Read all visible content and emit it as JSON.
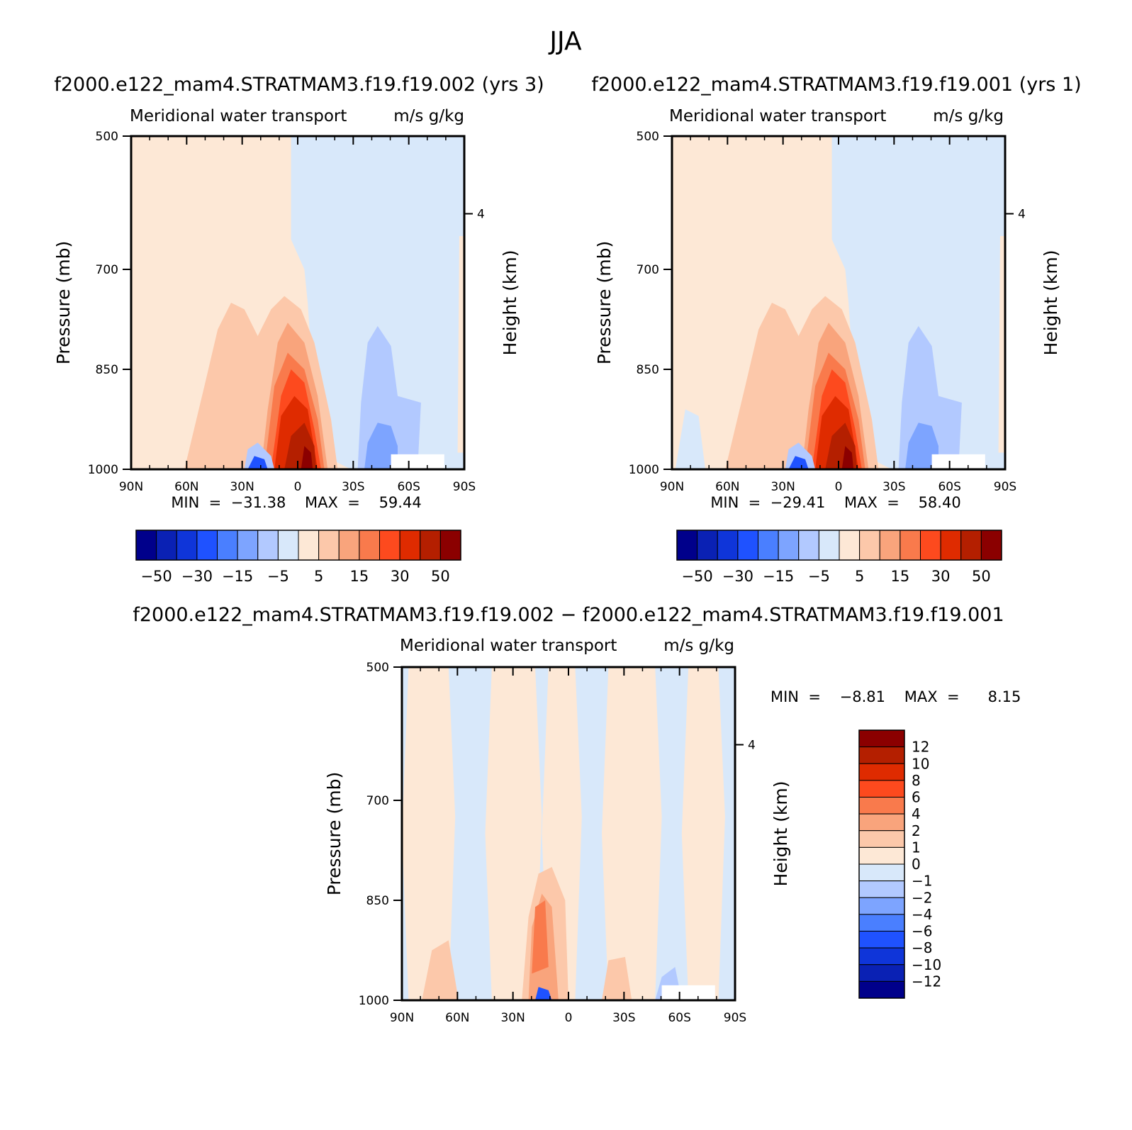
{
  "figure": {
    "title": "JJA",
    "panels": [
      {
        "case_title": "f2000.e122_mam4.STRATMAM3.f19.f19.002  (yrs  3)",
        "left_title": "Meridional  water  transport",
        "right_title": "m/s  g/kg",
        "min_max_text": "MIN  =  −31.38    MAX  =    59.44",
        "colorbar_labels": [
          "−50",
          "−30",
          "−15",
          "−5",
          "5",
          "15",
          "30",
          "50"
        ]
      },
      {
        "case_title": "f2000.e122_mam4.STRATMAM3.f19.f19.001  (yrs  1)",
        "left_title": "Meridional  water  transport",
        "right_title": "m/s  g/kg",
        "min_max_text": "MIN  =  −29.41    MAX  =    58.40",
        "colorbar_labels": [
          "−50",
          "−30",
          "−15",
          "−5",
          "5",
          "15",
          "30",
          "50"
        ]
      },
      {
        "case_title": "f2000.e122_mam4.STRATMAM3.f19.f19.002  −  f2000.e122_mam4.STRATMAM3.f19.f19.001",
        "left_title": "Meridional  water  transport",
        "right_title": "m/s  g/kg",
        "min_max_text": "MIN  =    −8.81    MAX  =      8.15",
        "colorbar_labels": [
          "12",
          "10",
          "8",
          "6",
          "4",
          "2",
          "1",
          "0",
          "−1",
          "−2",
          "−4",
          "−6",
          "−8",
          "−10",
          "−12"
        ]
      }
    ]
  },
  "chart_data": [
    {
      "type": "heatmap",
      "title": "f2000.e122_mam4.STRATMAM3.f19.f19.002  (yrs  3)",
      "subtitle_left": "Meridional  water  transport",
      "subtitle_right": "m/s  g/kg",
      "xlabel": "",
      "ylabel": "Pressure  (mb)",
      "y2label": "Height  (km)",
      "x_ticks": [
        "90N",
        "60N",
        "30N",
        "0",
        "30S",
        "60S",
        "90S"
      ],
      "y_ticks": [
        "500",
        "700",
        "850",
        "1000"
      ],
      "y2_ticks": [
        "4"
      ],
      "xlim": [
        90,
        -90
      ],
      "ylim": [
        1000,
        500
      ],
      "min": -31.38,
      "max": 59.44,
      "levels": [
        -50,
        -40,
        -30,
        -20,
        -15,
        -10,
        -5,
        0,
        5,
        10,
        15,
        20,
        30,
        40,
        50
      ],
      "colorbar_labels": [
        "−50",
        "−30",
        "−15",
        "−5",
        "5",
        "15",
        "30",
        "50"
      ]
    },
    {
      "type": "heatmap",
      "title": "f2000.e122_mam4.STRATMAM3.f19.f19.001  (yrs  1)",
      "subtitle_left": "Meridional  water  transport",
      "subtitle_right": "m/s  g/kg",
      "xlabel": "",
      "ylabel": "Pressure  (mb)",
      "y2label": "Height  (km)",
      "x_ticks": [
        "90N",
        "60N",
        "30N",
        "0",
        "30S",
        "60S",
        "90S"
      ],
      "y_ticks": [
        "500",
        "700",
        "850",
        "1000"
      ],
      "y2_ticks": [
        "4"
      ],
      "xlim": [
        90,
        -90
      ],
      "ylim": [
        1000,
        500
      ],
      "min": -29.41,
      "max": 58.4,
      "levels": [
        -50,
        -40,
        -30,
        -20,
        -15,
        -10,
        -5,
        0,
        5,
        10,
        15,
        20,
        30,
        40,
        50
      ],
      "colorbar_labels": [
        "−50",
        "−30",
        "−15",
        "−5",
        "5",
        "15",
        "30",
        "50"
      ]
    },
    {
      "type": "heatmap",
      "title": "f2000.e122_mam4.STRATMAM3.f19.f19.002  −  f2000.e122_mam4.STRATMAM3.f19.f19.001",
      "subtitle_left": "Meridional  water  transport",
      "subtitle_right": "m/s  g/kg",
      "xlabel": "",
      "ylabel": "Pressure  (mb)",
      "y2label": "Height  (km)",
      "x_ticks": [
        "90N",
        "60N",
        "30N",
        "0",
        "30S",
        "60S",
        "90S"
      ],
      "y_ticks": [
        "500",
        "700",
        "850",
        "1000"
      ],
      "y2_ticks": [
        "4"
      ],
      "xlim": [
        90,
        -90
      ],
      "ylim": [
        1000,
        500
      ],
      "min": -8.81,
      "max": 8.15,
      "levels": [
        -12,
        -10,
        -8,
        -6,
        -4,
        -2,
        -1,
        0,
        1,
        2,
        4,
        6,
        8,
        10,
        12
      ],
      "colorbar_labels": [
        "12",
        "10",
        "8",
        "6",
        "4",
        "2",
        "1",
        "0",
        "−1",
        "−2",
        "−4",
        "−6",
        "−8",
        "−10",
        "−12"
      ]
    }
  ],
  "colors": {
    "palette": [
      "#00008b",
      "#0a21b4",
      "#0f35d9",
      "#1f52ff",
      "#4a7fff",
      "#7da4ff",
      "#b2c9ff",
      "#d8e8fa",
      "#fde8d6",
      "#fcc8aa",
      "#f9a47c",
      "#f97a4c",
      "#fd4a1e",
      "#df2b00",
      "#b41f00",
      "#8b0000"
    ],
    "axis": "#000000",
    "background": "#ffffff"
  }
}
